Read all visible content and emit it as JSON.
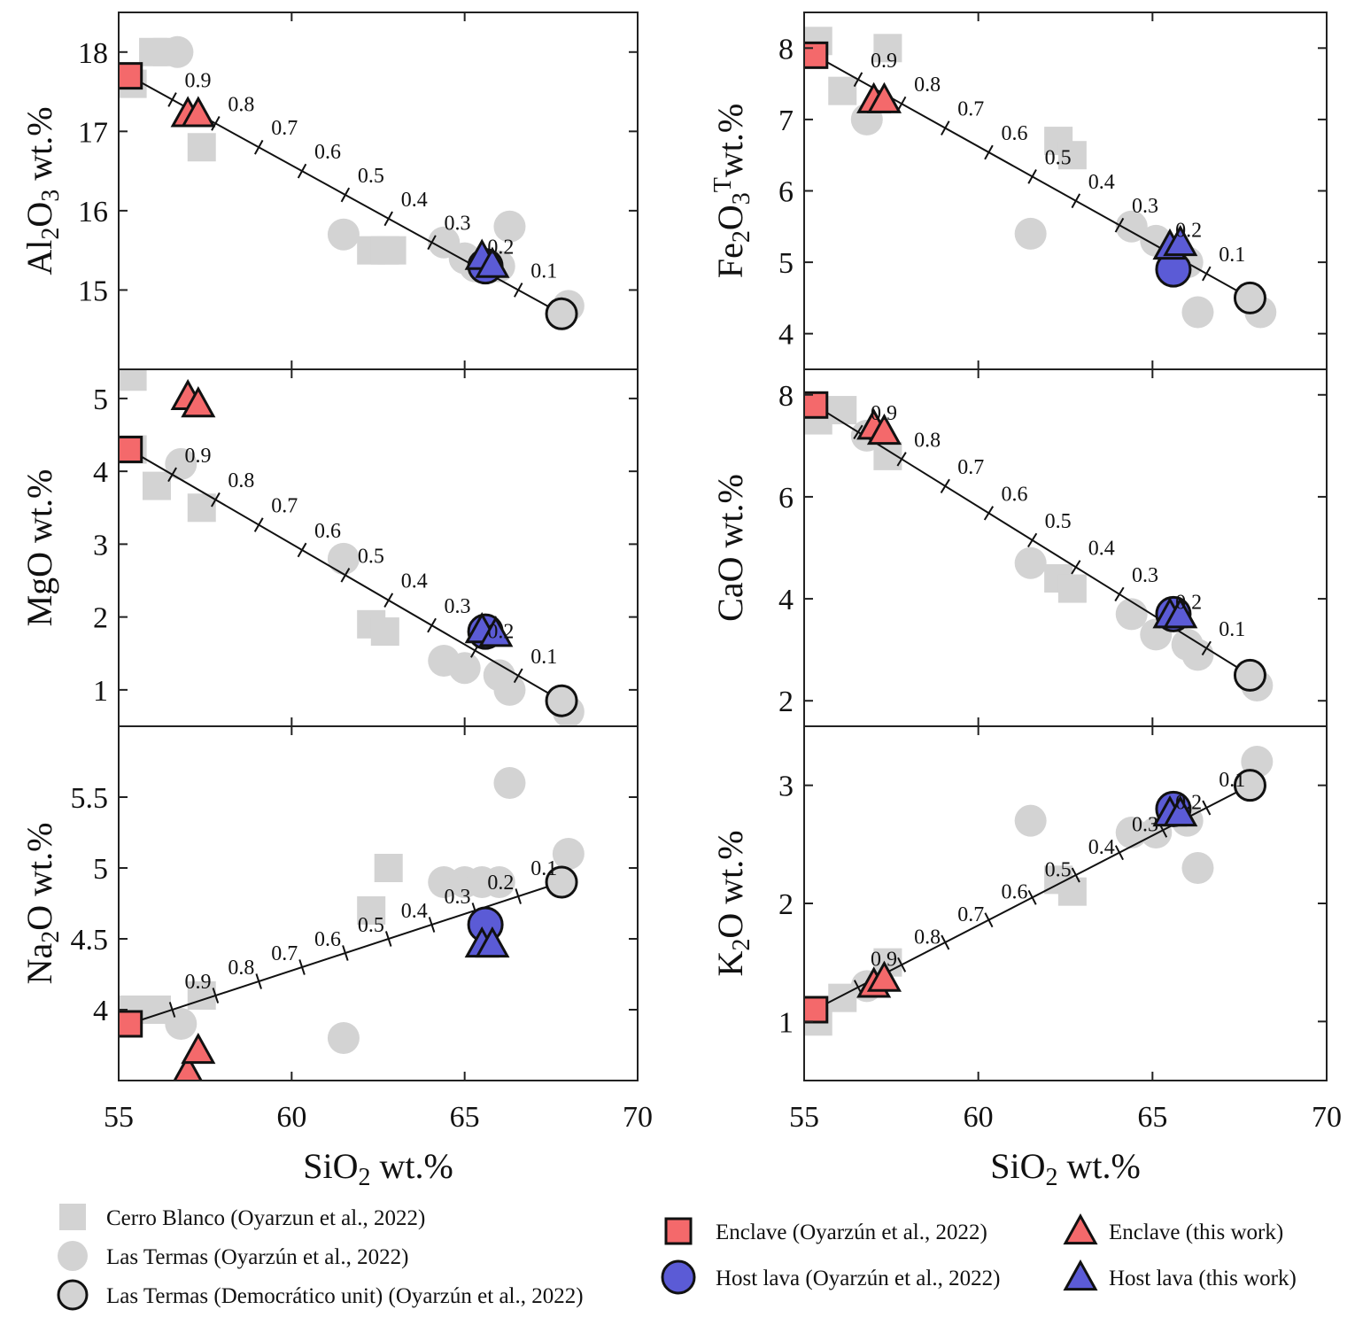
{
  "chart_data": {
    "type": "scatter",
    "title": "",
    "x_axis": {
      "label_main": "SiO",
      "label_sub": "2",
      "label_rest": " wt.%",
      "range": [
        55,
        70
      ],
      "ticks": [
        55,
        60,
        65,
        70
      ],
      "tick_labels": [
        "55",
        "60",
        "65",
        "70"
      ]
    },
    "colors": {
      "cerro_blanco": "#d3d3d3",
      "las_termas": "#d3d3d3",
      "democratico": "#d3d3d3",
      "enclave": "#f4696b",
      "host": "#5b5bd6",
      "outline": "#111111",
      "line": "#111111"
    },
    "legend": [
      {
        "key": "cerro_blanco",
        "marker": "square",
        "label": "Cerro Blanco  (Oyarzun et al., 2022)"
      },
      {
        "key": "las_termas",
        "marker": "circle",
        "label": "Las Termas  (Oyarzún et al., 2022)"
      },
      {
        "key": "democratico",
        "marker": "circle-outline",
        "label": "Las Termas (Democrático unit)  (Oyarzún et al., 2022)"
      },
      {
        "key": "enclave_oyarzun",
        "marker": "square-red",
        "label": "Enclave  (Oyarzún et al., 2022)"
      },
      {
        "key": "host_oyarzun",
        "marker": "circle-blue",
        "label": "Host lava  (Oyarzún et al., 2022)"
      },
      {
        "key": "enclave_this",
        "marker": "triangle-red",
        "label": "Enclave  (this work)"
      },
      {
        "key": "host_this",
        "marker": "triangle-blue",
        "label": "Host lava  (this work)"
      }
    ],
    "panels": [
      {
        "id": "al2o3",
        "ylabel_parts": [
          {
            "t": "Al"
          },
          {
            "t": "2",
            "s": "sub"
          },
          {
            "t": "O"
          },
          {
            "t": "3",
            "s": "sub"
          },
          {
            "t": " wt.%"
          }
        ],
        "ylim": [
          14.0,
          18.5
        ],
        "yticks": [
          15,
          16,
          17,
          18
        ],
        "ytick_labels": [
          "15",
          "16",
          "17",
          "18"
        ],
        "mix_labels": [
          "0.9",
          "0.8",
          "0.7",
          "0.6",
          "0.5",
          "0.4",
          "0.3",
          "0.2",
          "0.1"
        ],
        "mixing_line": {
          "x": [
            55.3,
            67.8
          ],
          "y": [
            17.7,
            14.7
          ]
        },
        "cerro_blanco": [
          [
            55.4,
            17.6
          ],
          [
            56.0,
            18.0
          ],
          [
            56.4,
            18.0
          ],
          [
            57.4,
            16.8
          ],
          [
            62.3,
            15.5
          ],
          [
            62.7,
            15.5
          ],
          [
            62.9,
            15.5
          ]
        ],
        "las_termas": [
          [
            56.7,
            18.0
          ],
          [
            61.5,
            15.7
          ],
          [
            64.4,
            15.6
          ],
          [
            65.0,
            15.4
          ],
          [
            65.3,
            15.3
          ],
          [
            66.0,
            15.3
          ],
          [
            66.3,
            15.8
          ],
          [
            68.0,
            14.8
          ]
        ],
        "democratico": [
          [
            67.8,
            14.7
          ]
        ],
        "enclave_oyarzun": [
          [
            55.3,
            17.7
          ]
        ],
        "host_oyarzun": [
          [
            65.6,
            15.3
          ]
        ],
        "enclave_this": [
          [
            57.0,
            17.2
          ],
          [
            57.3,
            17.2
          ]
        ],
        "host_this": [
          [
            65.5,
            15.4
          ],
          [
            65.8,
            15.3
          ]
        ]
      },
      {
        "id": "fe2o3",
        "ylabel_parts": [
          {
            "t": "Fe"
          },
          {
            "t": "2",
            "s": "sub"
          },
          {
            "t": "O"
          },
          {
            "t": "3",
            "s": "sub"
          },
          {
            "t": "T",
            "s": "sup"
          },
          {
            "t": "wt.%"
          }
        ],
        "ylim": [
          3.5,
          8.5
        ],
        "yticks": [
          4,
          5,
          6,
          7,
          8
        ],
        "ytick_labels": [
          "4",
          "5",
          "6",
          "7",
          "8"
        ],
        "mix_labels": [
          "0.9",
          "0.8",
          "0.7",
          "0.6",
          "0.5",
          "0.4",
          "0.3",
          "0.2",
          "0.1"
        ],
        "mixing_line": {
          "x": [
            55.3,
            67.8
          ],
          "y": [
            7.9,
            4.5
          ]
        },
        "cerro_blanco": [
          [
            55.4,
            8.1
          ],
          [
            56.1,
            7.4
          ],
          [
            57.4,
            8.0
          ],
          [
            62.3,
            6.7
          ],
          [
            62.7,
            6.5
          ]
        ],
        "las_termas": [
          [
            56.8,
            7.0
          ],
          [
            61.5,
            5.4
          ],
          [
            64.4,
            5.5
          ],
          [
            65.1,
            5.3
          ],
          [
            66.0,
            5.0
          ],
          [
            66.3,
            4.3
          ],
          [
            68.1,
            4.3
          ]
        ],
        "democratico": [
          [
            67.8,
            4.5
          ]
        ],
        "enclave_oyarzun": [
          [
            55.3,
            7.9
          ]
        ],
        "host_oyarzun": [
          [
            65.6,
            4.9
          ]
        ],
        "enclave_this": [
          [
            57.0,
            7.25
          ],
          [
            57.3,
            7.25
          ]
        ],
        "host_this": [
          [
            65.5,
            5.2
          ],
          [
            65.8,
            5.25
          ]
        ]
      },
      {
        "id": "mgo",
        "ylabel_parts": [
          {
            "t": "MgO wt.%"
          }
        ],
        "ylim": [
          0.5,
          5.4
        ],
        "yticks": [
          1,
          2,
          3,
          4,
          5
        ],
        "ytick_labels": [
          "1",
          "2",
          "3",
          "4",
          "5"
        ],
        "mix_labels": [
          "0.9",
          "0.8",
          "0.7",
          "0.6",
          "0.5",
          "0.4",
          "0.3",
          "0.2",
          "0.1"
        ],
        "mixing_line": {
          "x": [
            55.3,
            67.8
          ],
          "y": [
            4.3,
            0.85
          ]
        },
        "cerro_blanco": [
          [
            55.4,
            5.3
          ],
          [
            55.4,
            4.3
          ],
          [
            56.1,
            3.8
          ],
          [
            57.4,
            3.5
          ],
          [
            62.3,
            1.9
          ],
          [
            62.7,
            1.8
          ]
        ],
        "las_termas": [
          [
            56.8,
            4.1
          ],
          [
            61.5,
            2.8
          ],
          [
            64.4,
            1.4
          ],
          [
            65.0,
            1.3
          ],
          [
            66.0,
            1.2
          ],
          [
            66.3,
            1.0
          ],
          [
            68.0,
            0.7
          ]
        ],
        "democratico": [
          [
            67.8,
            0.85
          ]
        ],
        "enclave_oyarzun": [
          [
            55.3,
            4.3
          ]
        ],
        "host_oyarzun": [
          [
            65.6,
            1.8
          ]
        ],
        "enclave_this": [
          [
            57.0,
            5.0
          ],
          [
            57.3,
            4.9
          ]
        ],
        "host_this": [
          [
            65.5,
            1.8
          ],
          [
            65.9,
            1.75
          ]
        ]
      },
      {
        "id": "cao",
        "ylabel_parts": [
          {
            "t": "CaO wt.%"
          }
        ],
        "ylim": [
          1.5,
          8.5
        ],
        "yticks": [
          2,
          4,
          6,
          8
        ],
        "ytick_labels": [
          "2",
          "4",
          "6",
          "8"
        ],
        "mix_labels": [
          "0.9",
          "0.8",
          "0.7",
          "0.6",
          "0.5",
          "0.4",
          "0.3",
          "0.2",
          "0.1"
        ],
        "mixing_line": {
          "x": [
            55.3,
            67.8
          ],
          "y": [
            7.8,
            2.5
          ]
        },
        "cerro_blanco": [
          [
            55.4,
            7.5
          ],
          [
            56.1,
            7.7
          ],
          [
            57.4,
            6.8
          ],
          [
            62.3,
            4.4
          ],
          [
            62.7,
            4.2
          ]
        ],
        "las_termas": [
          [
            56.8,
            7.2
          ],
          [
            61.5,
            4.7
          ],
          [
            64.4,
            3.7
          ],
          [
            65.1,
            3.3
          ],
          [
            66.0,
            3.1
          ],
          [
            66.3,
            2.9
          ],
          [
            68.0,
            2.3
          ]
        ],
        "democratico": [
          [
            67.8,
            2.5
          ]
        ],
        "enclave_oyarzun": [
          [
            55.3,
            7.8
          ]
        ],
        "host_oyarzun": [
          [
            65.6,
            3.7
          ]
        ],
        "enclave_this": [
          [
            57.0,
            7.35
          ],
          [
            57.3,
            7.25
          ]
        ],
        "host_this": [
          [
            65.5,
            3.65
          ],
          [
            65.8,
            3.65
          ]
        ]
      },
      {
        "id": "na2o",
        "ylabel_parts": [
          {
            "t": "Na"
          },
          {
            "t": "2",
            "s": "sub"
          },
          {
            "t": "O wt.%"
          }
        ],
        "ylim": [
          3.5,
          6.0
        ],
        "yticks": [
          4,
          4.5,
          5,
          5.5
        ],
        "ytick_labels": [
          "4",
          "4.5",
          "5",
          "5.5"
        ],
        "mix_labels": [
          "0.9",
          "0.8",
          "0.7",
          "0.6",
          "0.5",
          "0.4",
          "0.3",
          "0.2",
          "0.1"
        ],
        "mixing_line": {
          "x": [
            55.3,
            67.8
          ],
          "y": [
            3.9,
            4.9
          ]
        },
        "cerro_blanco": [
          [
            55.4,
            4.0
          ],
          [
            56.1,
            4.0
          ],
          [
            57.4,
            4.1
          ],
          [
            62.3,
            4.7
          ],
          [
            62.8,
            5.0
          ]
        ],
        "las_termas": [
          [
            56.8,
            3.9
          ],
          [
            61.5,
            3.8
          ],
          [
            64.4,
            4.9
          ],
          [
            65.0,
            4.9
          ],
          [
            65.5,
            4.9
          ],
          [
            66.0,
            4.9
          ],
          [
            66.3,
            5.6
          ],
          [
            68.0,
            5.1
          ]
        ],
        "democratico": [
          [
            67.8,
            4.9
          ]
        ],
        "enclave_oyarzun": [
          [
            55.3,
            3.9
          ]
        ],
        "host_oyarzun": [
          [
            65.6,
            4.6
          ]
        ],
        "enclave_this": [
          [
            57.0,
            3.55
          ],
          [
            57.3,
            3.7
          ]
        ],
        "host_this": [
          [
            65.5,
            4.45
          ],
          [
            65.8,
            4.45
          ]
        ]
      },
      {
        "id": "k2o",
        "ylabel_parts": [
          {
            "t": "K"
          },
          {
            "t": "2",
            "s": "sub"
          },
          {
            "t": "O wt.%"
          }
        ],
        "ylim": [
          0.5,
          3.5
        ],
        "yticks": [
          1,
          2,
          3
        ],
        "ytick_labels": [
          "1",
          "2",
          "3"
        ],
        "mix_labels": [
          "0.9",
          "0.8",
          "0.7",
          "0.6",
          "0.5",
          "0.4",
          "0.3",
          "0.2",
          "0.1"
        ],
        "mixing_line": {
          "x": [
            55.3,
            67.8
          ],
          "y": [
            1.1,
            3.0
          ]
        },
        "cerro_blanco": [
          [
            55.4,
            1.0
          ],
          [
            56.1,
            1.2
          ],
          [
            57.4,
            1.5
          ],
          [
            62.3,
            2.2
          ],
          [
            62.7,
            2.1
          ]
        ],
        "las_termas": [
          [
            56.8,
            1.3
          ],
          [
            61.5,
            2.7
          ],
          [
            64.4,
            2.6
          ],
          [
            65.1,
            2.6
          ],
          [
            66.0,
            2.7
          ],
          [
            66.3,
            2.3
          ],
          [
            68.0,
            3.2
          ]
        ],
        "democratico": [
          [
            67.8,
            3.0
          ]
        ],
        "enclave_oyarzun": [
          [
            55.3,
            1.1
          ]
        ],
        "host_oyarzun": [
          [
            65.6,
            2.8
          ]
        ],
        "enclave_this": [
          [
            57.0,
            1.3
          ],
          [
            57.3,
            1.35
          ]
        ],
        "host_this": [
          [
            65.5,
            2.75
          ],
          [
            65.8,
            2.75
          ]
        ]
      }
    ]
  }
}
